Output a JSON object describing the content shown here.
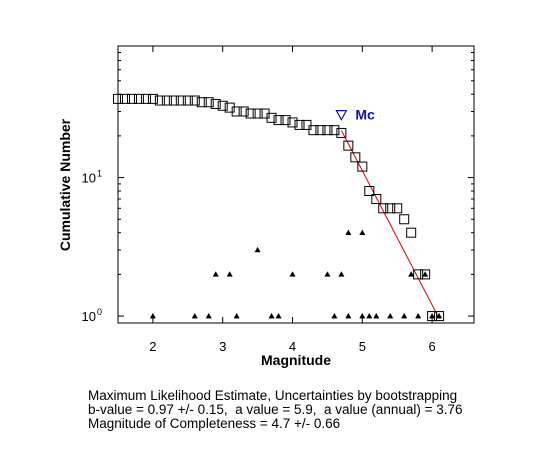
{
  "chart_data": {
    "type": "scatter",
    "xlabel": "Magnitude",
    "ylabel": "Cumulative Number",
    "xlim": [
      1.5,
      6.6
    ],
    "ylim_log10": [
      -0.05,
      1.95
    ],
    "yscale": "log",
    "x_ticks": [
      2,
      3,
      4,
      5,
      6
    ],
    "x_tick_labels": [
      "2",
      "3",
      "4",
      "5",
      "6"
    ],
    "y_ticks": [
      1,
      10
    ],
    "y_tick_labels": [
      {
        "base": "10",
        "exp": "0"
      },
      {
        "base": "10",
        "exp": "1"
      }
    ],
    "grid": false,
    "series": [
      {
        "marker": "open-square",
        "x": [
          1.5,
          1.6,
          1.7,
          1.8,
          1.9,
          2.0,
          2.1,
          2.2,
          2.3,
          2.4,
          2.5,
          2.6,
          2.7,
          2.8,
          2.9,
          3.0,
          3.1,
          3.2,
          3.3,
          3.4,
          3.5,
          3.6,
          3.7,
          3.8,
          3.9,
          4.0,
          4.1,
          4.2,
          4.3,
          4.4,
          4.5,
          4.6,
          4.7,
          4.8,
          4.9,
          5.0,
          5.1,
          5.2,
          5.3,
          5.4,
          5.5,
          5.6,
          5.7,
          5.8,
          5.9,
          6.0,
          6.1
        ],
        "y": [
          37,
          37,
          37,
          37,
          37,
          37,
          36,
          36,
          36,
          36,
          36,
          36,
          35,
          35,
          34,
          33,
          32,
          30,
          30,
          29,
          29,
          29,
          27,
          26,
          26,
          25,
          24,
          24,
          22,
          22,
          22,
          22,
          21,
          17,
          14,
          12,
          8,
          7,
          6,
          6,
          6,
          5,
          4,
          2,
          2,
          1,
          1
        ]
      },
      {
        "marker": "small-triangle",
        "x": [
          2.0,
          2.6,
          2.8,
          2.9,
          3.1,
          3.2,
          3.5,
          3.7,
          3.8,
          4.0,
          4.6,
          4.5,
          4.7,
          4.8,
          4.8,
          5.0,
          5.0,
          5.1,
          5.2,
          5.4,
          5.6,
          5.7,
          5.8,
          5.9,
          6.0,
          6.1
        ],
        "y": [
          1,
          1,
          1,
          2,
          2,
          1,
          3,
          1,
          1,
          2,
          1,
          2,
          2,
          4,
          1,
          1,
          4,
          1,
          1,
          1,
          1,
          2,
          1,
          2,
          1,
          1
        ]
      }
    ],
    "fit_line": {
      "color": "#d40000",
      "a_value": 5.9,
      "b_value": 0.97,
      "x_start": 4.7,
      "x_end": 6.1
    },
    "mc_marker": {
      "label": "Mc",
      "x": 4.7,
      "y": 28,
      "color": "#1010b0"
    }
  },
  "stats": {
    "line1": "Maximum Likelihood Estimate, Uncertainties by bootstrapping",
    "line2": "b-value = 0.97 +/- 0.15,  a value = 5.9,  a value (annual) = 3.76",
    "line3": "Magnitude of Completeness = 4.7 +/- 0.66"
  }
}
